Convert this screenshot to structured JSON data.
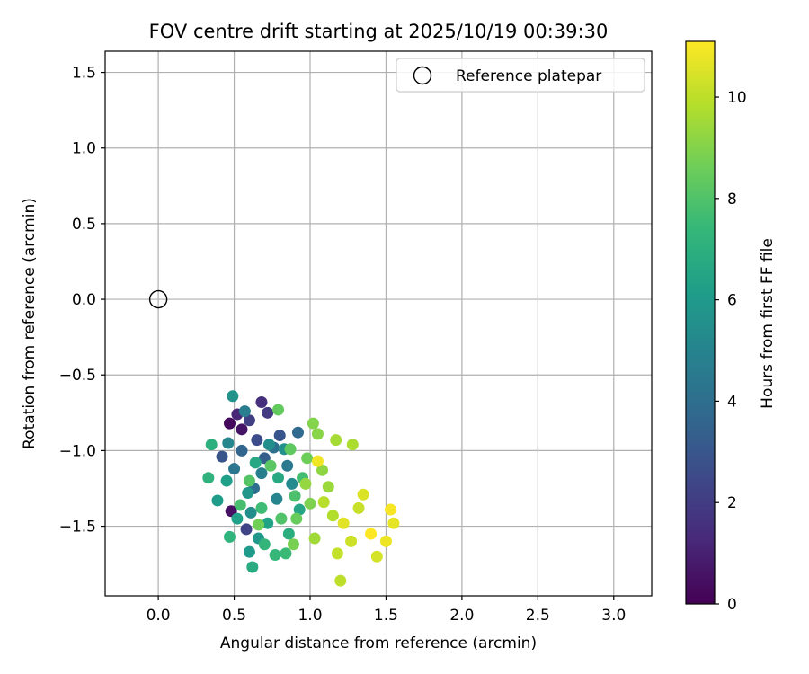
{
  "chart_data": {
    "type": "scatter",
    "title": "FOV centre drift starting at 2025/10/19 00:39:30",
    "xlabel": "Angular distance from reference (arcmin)",
    "ylabel": "Rotation from reference (arcmin)",
    "xlim": [
      -0.35,
      3.25
    ],
    "ylim": [
      -1.96,
      1.64
    ],
    "xticks": [
      0.0,
      0.5,
      1.0,
      1.5,
      2.0,
      2.5,
      3.0
    ],
    "xtick_labels": [
      "0.0",
      "0.5",
      "1.0",
      "1.5",
      "2.0",
      "2.5",
      "3.0"
    ],
    "yticks": [
      1.5,
      1.0,
      0.5,
      0.0,
      -0.5,
      -1.0,
      -1.5
    ],
    "ytick_labels": [
      "1.5",
      "1.0",
      "0.5",
      "0.0",
      "−0.5",
      "−1.0",
      "−1.5"
    ],
    "grid": true,
    "legend": {
      "placement": "top-right",
      "entries": [
        {
          "label": "Reference platepar",
          "marker": "open-circle",
          "color": "#000000"
        }
      ]
    },
    "reference_point": {
      "x": 0.0,
      "y": 0.0
    },
    "colorbar": {
      "label": "Hours from first FF file",
      "range": [
        0,
        11.1
      ],
      "ticks": [
        0,
        2,
        4,
        6,
        8,
        10
      ],
      "tick_labels": [
        "0",
        "2",
        "4",
        "6",
        "8",
        "10"
      ],
      "colormap": "viridis",
      "stops": [
        "#440154",
        "#482878",
        "#3e4989",
        "#31688e",
        "#26828e",
        "#1f9e89",
        "#35b779",
        "#6ece58",
        "#b5de2b",
        "#fde725"
      ]
    },
    "points": [
      {
        "x": 0.47,
        "y": -0.82,
        "hours": 0.3
      },
      {
        "x": 0.55,
        "y": -0.86,
        "hours": 0.6
      },
      {
        "x": 0.48,
        "y": -1.4,
        "hours": 0.5
      },
      {
        "x": 0.52,
        "y": -0.76,
        "hours": 1.2
      },
      {
        "x": 0.68,
        "y": -0.68,
        "hours": 1.5
      },
      {
        "x": 0.72,
        "y": -0.75,
        "hours": 1.9
      },
      {
        "x": 0.6,
        "y": -0.8,
        "hours": 2.1
      },
      {
        "x": 0.58,
        "y": -1.52,
        "hours": 2.3
      },
      {
        "x": 0.65,
        "y": -0.93,
        "hours": 2.6
      },
      {
        "x": 0.42,
        "y": -1.04,
        "hours": 2.9
      },
      {
        "x": 0.8,
        "y": -0.9,
        "hours": 3.0
      },
      {
        "x": 0.7,
        "y": -1.05,
        "hours": 3.3
      },
      {
        "x": 0.55,
        "y": -1.0,
        "hours": 3.6
      },
      {
        "x": 0.92,
        "y": -0.88,
        "hours": 3.8
      },
      {
        "x": 0.63,
        "y": -1.25,
        "hours": 4.0
      },
      {
        "x": 0.76,
        "y": -0.98,
        "hours": 4.1
      },
      {
        "x": 0.5,
        "y": -1.12,
        "hours": 4.3
      },
      {
        "x": 0.85,
        "y": -1.1,
        "hours": 4.5
      },
      {
        "x": 0.57,
        "y": -0.74,
        "hours": 4.7
      },
      {
        "x": 0.68,
        "y": -1.15,
        "hours": 4.8
      },
      {
        "x": 0.78,
        "y": -1.32,
        "hours": 5.0
      },
      {
        "x": 0.46,
        "y": -0.95,
        "hours": 5.1
      },
      {
        "x": 0.88,
        "y": -1.22,
        "hours": 5.3
      },
      {
        "x": 0.61,
        "y": -1.41,
        "hours": 5.4
      },
      {
        "x": 0.73,
        "y": -0.96,
        "hours": 5.5
      },
      {
        "x": 0.83,
        "y": -0.99,
        "hours": 5.6
      },
      {
        "x": 0.49,
        "y": -0.64,
        "hours": 5.7
      },
      {
        "x": 0.59,
        "y": -1.28,
        "hours": 5.8
      },
      {
        "x": 0.66,
        "y": -1.58,
        "hours": 5.9
      },
      {
        "x": 0.6,
        "y": -1.67,
        "hours": 6.0
      },
      {
        "x": 0.39,
        "y": -1.33,
        "hours": 6.1
      },
      {
        "x": 0.45,
        "y": -1.2,
        "hours": 6.2
      },
      {
        "x": 0.52,
        "y": -1.45,
        "hours": 6.3
      },
      {
        "x": 0.72,
        "y": -1.48,
        "hours": 6.4
      },
      {
        "x": 0.93,
        "y": -1.39,
        "hours": 6.5
      },
      {
        "x": 0.64,
        "y": -1.08,
        "hours": 6.6
      },
      {
        "x": 0.79,
        "y": -1.18,
        "hours": 6.7
      },
      {
        "x": 0.62,
        "y": -1.77,
        "hours": 6.8
      },
      {
        "x": 0.86,
        "y": -1.55,
        "hours": 6.9
      },
      {
        "x": 0.35,
        "y": -0.96,
        "hours": 7.0
      },
      {
        "x": 0.33,
        "y": -1.18,
        "hours": 7.1
      },
      {
        "x": 0.47,
        "y": -1.57,
        "hours": 7.2
      },
      {
        "x": 0.7,
        "y": -1.62,
        "hours": 7.3
      },
      {
        "x": 0.77,
        "y": -1.69,
        "hours": 7.4
      },
      {
        "x": 0.84,
        "y": -1.68,
        "hours": 7.5
      },
      {
        "x": 0.68,
        "y": -1.38,
        "hours": 7.6
      },
      {
        "x": 0.95,
        "y": -1.18,
        "hours": 7.7
      },
      {
        "x": 0.54,
        "y": -1.36,
        "hours": 7.8
      },
      {
        "x": 0.9,
        "y": -1.3,
        "hours": 7.9
      },
      {
        "x": 0.81,
        "y": -1.45,
        "hours": 8.0
      },
      {
        "x": 0.6,
        "y": -1.2,
        "hours": 8.1
      },
      {
        "x": 0.74,
        "y": -1.1,
        "hours": 8.2
      },
      {
        "x": 0.87,
        "y": -0.99,
        "hours": 8.3
      },
      {
        "x": 0.79,
        "y": -0.73,
        "hours": 8.4
      },
      {
        "x": 0.91,
        "y": -1.45,
        "hours": 8.5
      },
      {
        "x": 0.98,
        "y": -1.05,
        "hours": 8.6
      },
      {
        "x": 0.66,
        "y": -1.49,
        "hours": 8.7
      },
      {
        "x": 0.89,
        "y": -1.62,
        "hours": 8.8
      },
      {
        "x": 1.0,
        "y": -1.35,
        "hours": 8.9
      },
      {
        "x": 1.02,
        "y": -0.82,
        "hours": 9.0
      },
      {
        "x": 1.05,
        "y": -0.89,
        "hours": 9.1
      },
      {
        "x": 1.08,
        "y": -1.13,
        "hours": 9.2
      },
      {
        "x": 0.97,
        "y": -1.22,
        "hours": 9.3
      },
      {
        "x": 1.12,
        "y": -1.24,
        "hours": 9.4
      },
      {
        "x": 1.03,
        "y": -1.58,
        "hours": 9.5
      },
      {
        "x": 1.17,
        "y": -0.93,
        "hours": 9.6
      },
      {
        "x": 1.28,
        "y": -0.96,
        "hours": 9.7
      },
      {
        "x": 1.15,
        "y": -1.43,
        "hours": 9.8
      },
      {
        "x": 1.09,
        "y": -1.34,
        "hours": 9.9
      },
      {
        "x": 1.2,
        "y": -1.86,
        "hours": 10.0
      },
      {
        "x": 1.18,
        "y": -1.68,
        "hours": 10.1
      },
      {
        "x": 1.32,
        "y": -1.38,
        "hours": 10.2
      },
      {
        "x": 1.27,
        "y": -1.6,
        "hours": 10.3
      },
      {
        "x": 1.44,
        "y": -1.7,
        "hours": 10.4
      },
      {
        "x": 1.35,
        "y": -1.29,
        "hours": 10.5
      },
      {
        "x": 1.22,
        "y": -1.48,
        "hours": 10.6
      },
      {
        "x": 1.55,
        "y": -1.48,
        "hours": 10.7
      },
      {
        "x": 1.5,
        "y": -1.6,
        "hours": 10.8
      },
      {
        "x": 1.05,
        "y": -1.07,
        "hours": 10.9
      },
      {
        "x": 1.53,
        "y": -1.39,
        "hours": 11.0
      },
      {
        "x": 1.4,
        "y": -1.55,
        "hours": 11.1
      }
    ]
  }
}
